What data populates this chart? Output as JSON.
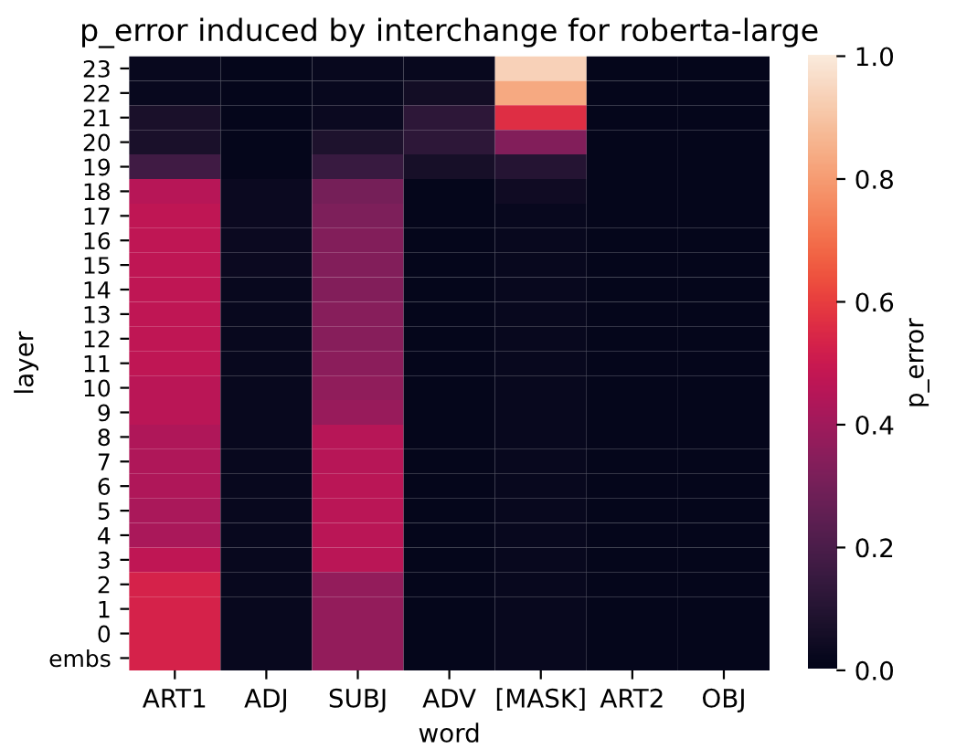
{
  "chart_data": {
    "type": "heatmap",
    "title": "p_error induced by interchange for roberta-large",
    "xlabel": "word",
    "ylabel": "layer",
    "clabel": "p_error",
    "categories": [
      "ART1",
      "ADJ",
      "SUBJ",
      "ADV",
      "[MASK]",
      "ART2",
      "OBJ"
    ],
    "y_categories": [
      "23",
      "22",
      "21",
      "20",
      "19",
      "18",
      "17",
      "16",
      "15",
      "14",
      "13",
      "12",
      "11",
      "10",
      "9",
      "8",
      "7",
      "6",
      "5",
      "4",
      "3",
      "2",
      "1",
      "0",
      "embs"
    ],
    "cells": [
      [
        0.02,
        0.01,
        0.02,
        0.02,
        0.93,
        0.01,
        0.01
      ],
      [
        0.02,
        0.01,
        0.02,
        0.05,
        0.83,
        0.01,
        0.01
      ],
      [
        0.07,
        0.01,
        0.03,
        0.12,
        0.56,
        0.01,
        0.01
      ],
      [
        0.07,
        0.01,
        0.08,
        0.12,
        0.33,
        0.01,
        0.01
      ],
      [
        0.17,
        0.01,
        0.15,
        0.06,
        0.1,
        0.01,
        0.01
      ],
      [
        0.45,
        0.03,
        0.3,
        0.01,
        0.04,
        0.01,
        0.01
      ],
      [
        0.47,
        0.03,
        0.32,
        0.01,
        0.02,
        0.01,
        0.01
      ],
      [
        0.47,
        0.03,
        0.33,
        0.01,
        0.02,
        0.01,
        0.01
      ],
      [
        0.47,
        0.03,
        0.33,
        0.01,
        0.02,
        0.01,
        0.01
      ],
      [
        0.47,
        0.02,
        0.33,
        0.01,
        0.02,
        0.01,
        0.01
      ],
      [
        0.47,
        0.02,
        0.34,
        0.01,
        0.02,
        0.01,
        0.01
      ],
      [
        0.47,
        0.02,
        0.34,
        0.01,
        0.02,
        0.01,
        0.01
      ],
      [
        0.47,
        0.02,
        0.35,
        0.01,
        0.02,
        0.01,
        0.01
      ],
      [
        0.46,
        0.02,
        0.36,
        0.01,
        0.02,
        0.01,
        0.01
      ],
      [
        0.46,
        0.02,
        0.38,
        0.01,
        0.02,
        0.01,
        0.01
      ],
      [
        0.43,
        0.02,
        0.45,
        0.01,
        0.02,
        0.01,
        0.01
      ],
      [
        0.43,
        0.02,
        0.45,
        0.01,
        0.02,
        0.01,
        0.01
      ],
      [
        0.43,
        0.02,
        0.46,
        0.01,
        0.02,
        0.01,
        0.01
      ],
      [
        0.42,
        0.02,
        0.46,
        0.01,
        0.02,
        0.01,
        0.01
      ],
      [
        0.42,
        0.02,
        0.46,
        0.01,
        0.02,
        0.01,
        0.01
      ],
      [
        0.47,
        0.02,
        0.46,
        0.01,
        0.02,
        0.01,
        0.01
      ],
      [
        0.53,
        0.02,
        0.37,
        0.01,
        0.02,
        0.01,
        0.01
      ],
      [
        0.53,
        0.02,
        0.37,
        0.01,
        0.02,
        0.01,
        0.01
      ],
      [
        0.53,
        0.02,
        0.37,
        0.01,
        0.02,
        0.01,
        0.01
      ],
      [
        0.53,
        0.02,
        0.37,
        0.01,
        0.02,
        0.01,
        0.01
      ]
    ],
    "clim": [
      0.0,
      1.0
    ],
    "cticks": [
      {
        "value": 0,
        "label": "0.0"
      },
      0.2,
      0.4,
      0.6,
      0.8,
      {
        "value": 1,
        "label": "1.0"
      }
    ]
  }
}
